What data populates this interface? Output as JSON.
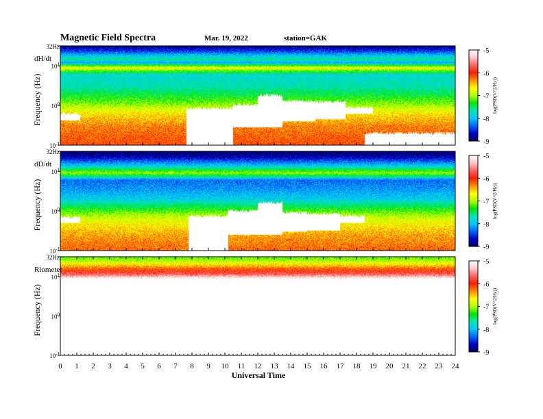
{
  "header": {
    "title": "Magnetic  Field  Spectra",
    "date": "Mar. 19, 2022",
    "station": "station=GAK"
  },
  "colors": {
    "colormap": [
      "#000060",
      "#0000c8",
      "#0064ff",
      "#00c8ff",
      "#00e6b4",
      "#00e600",
      "#b4ff00",
      "#ffff00",
      "#ff8c00",
      "#ff1e00",
      "#ff6464",
      "#ffc8c8",
      "#ffffff"
    ],
    "blank": "#ffffff"
  },
  "chart_data": {
    "type": "heatmap",
    "xlabel": "Universal Time",
    "x_ticks": [
      "0",
      "1",
      "2",
      "3",
      "4",
      "5",
      "6",
      "7",
      "8",
      "9",
      "10",
      "11",
      "12",
      "13",
      "14",
      "15",
      "16",
      "17",
      "18",
      "19",
      "20",
      "21",
      "22",
      "23",
      "24"
    ],
    "xlim": [
      0,
      24
    ],
    "y_scale": "log",
    "ylim": [
      0.1,
      32
    ],
    "y_tick_values": [
      0.1,
      1,
      10,
      32
    ],
    "y_tick_labels": [
      {
        "base": "10",
        "exp": "-1"
      },
      {
        "base": "10",
        "exp": "0"
      },
      {
        "base": "10",
        "exp": "1"
      },
      {
        "base": "32Hz",
        "exp": ""
      }
    ],
    "colorbar": {
      "range": [
        -9,
        -5
      ],
      "ticks": [
        "-9",
        "-8",
        "-7",
        "-6",
        "-5"
      ],
      "label": "log(PSD(V^2/Hz))"
    },
    "panels": [
      {
        "name": "dH/dt",
        "ylabel": "Frequency  (Hz)",
        "bands": [
          {
            "f": 32,
            "v": -8.9
          },
          {
            "f": 24,
            "v": -8.5
          },
          {
            "f": 15,
            "v": -7.6
          },
          {
            "f": 12,
            "v": -8.1
          },
          {
            "f": 9,
            "v": -6.7
          },
          {
            "f": 6,
            "v": -7.8
          },
          {
            "f": 3,
            "v": -7.7
          },
          {
            "f": 1.5,
            "v": -7.3
          },
          {
            "f": 1,
            "v": -7.0
          },
          {
            "f": 0.6,
            "v": -6.6
          },
          {
            "f": 0.3,
            "v": -6.3
          },
          {
            "f": 0.1,
            "v": -6.1
          }
        ],
        "saturated_events": [
          {
            "t0": 0.0,
            "t1": 1.2,
            "f_low": 0.42,
            "f_high": 0.62
          },
          {
            "t0": 7.7,
            "t1": 10.5,
            "f_low": 0.1,
            "f_high": 0.85
          },
          {
            "t0": 10.5,
            "t1": 12.0,
            "f_low": 0.28,
            "f_high": 1.05
          },
          {
            "t0": 12.0,
            "t1": 13.5,
            "f_low": 0.28,
            "f_high": 1.8
          },
          {
            "t0": 13.5,
            "t1": 15.5,
            "f_low": 0.4,
            "f_high": 1.3
          },
          {
            "t0": 15.5,
            "t1": 17.3,
            "f_low": 0.45,
            "f_high": 1.25
          },
          {
            "t0": 17.3,
            "t1": 19.0,
            "f_low": 0.62,
            "f_high": 0.9
          },
          {
            "t0": 18.5,
            "t1": 24.0,
            "f_low": 0.1,
            "f_high": 0.2
          }
        ]
      },
      {
        "name": "dD/dt",
        "ylabel": "Frequency  (Hz)",
        "bands": [
          {
            "f": 32,
            "v": -9.0
          },
          {
            "f": 22,
            "v": -8.7
          },
          {
            "f": 13,
            "v": -7.8
          },
          {
            "f": 9,
            "v": -7.0
          },
          {
            "f": 6,
            "v": -8.3
          },
          {
            "f": 4,
            "v": -8.2
          },
          {
            "f": 2,
            "v": -7.9
          },
          {
            "f": 1.2,
            "v": -7.4
          },
          {
            "f": 0.8,
            "v": -7.0
          },
          {
            "f": 0.5,
            "v": -6.7
          },
          {
            "f": 0.25,
            "v": -6.4
          },
          {
            "f": 0.1,
            "v": -6.2
          }
        ],
        "saturated_events": [
          {
            "t0": 0.0,
            "t1": 1.2,
            "f_low": 0.5,
            "f_high": 0.7
          },
          {
            "t0": 7.8,
            "t1": 10.2,
            "f_low": 0.1,
            "f_high": 0.75
          },
          {
            "t0": 10.2,
            "t1": 12.0,
            "f_low": 0.25,
            "f_high": 1.0
          },
          {
            "t0": 12.0,
            "t1": 13.5,
            "f_low": 0.25,
            "f_high": 1.6
          },
          {
            "t0": 13.5,
            "t1": 15.0,
            "f_low": 0.3,
            "f_high": 0.9
          },
          {
            "t0": 15.0,
            "t1": 17.0,
            "f_low": 0.32,
            "f_high": 0.85
          },
          {
            "t0": 17.0,
            "t1": 18.5,
            "f_low": 0.5,
            "f_high": 0.75
          }
        ]
      },
      {
        "name": "Riometer",
        "ylabel": "Frequency  (Hz)",
        "bands": [
          {
            "f": 32,
            "v": -7.2
          },
          {
            "f": 24,
            "v": -6.9
          },
          {
            "f": 18,
            "v": -6.4
          },
          {
            "f": 14,
            "v": -6.0
          },
          {
            "f": 11,
            "v": -5.6
          },
          {
            "f": 9,
            "v": -5.0
          },
          {
            "f": 7,
            "v": -4.5
          },
          {
            "f": 0.1,
            "v": -4.5
          }
        ],
        "saturated_events": []
      }
    ]
  }
}
